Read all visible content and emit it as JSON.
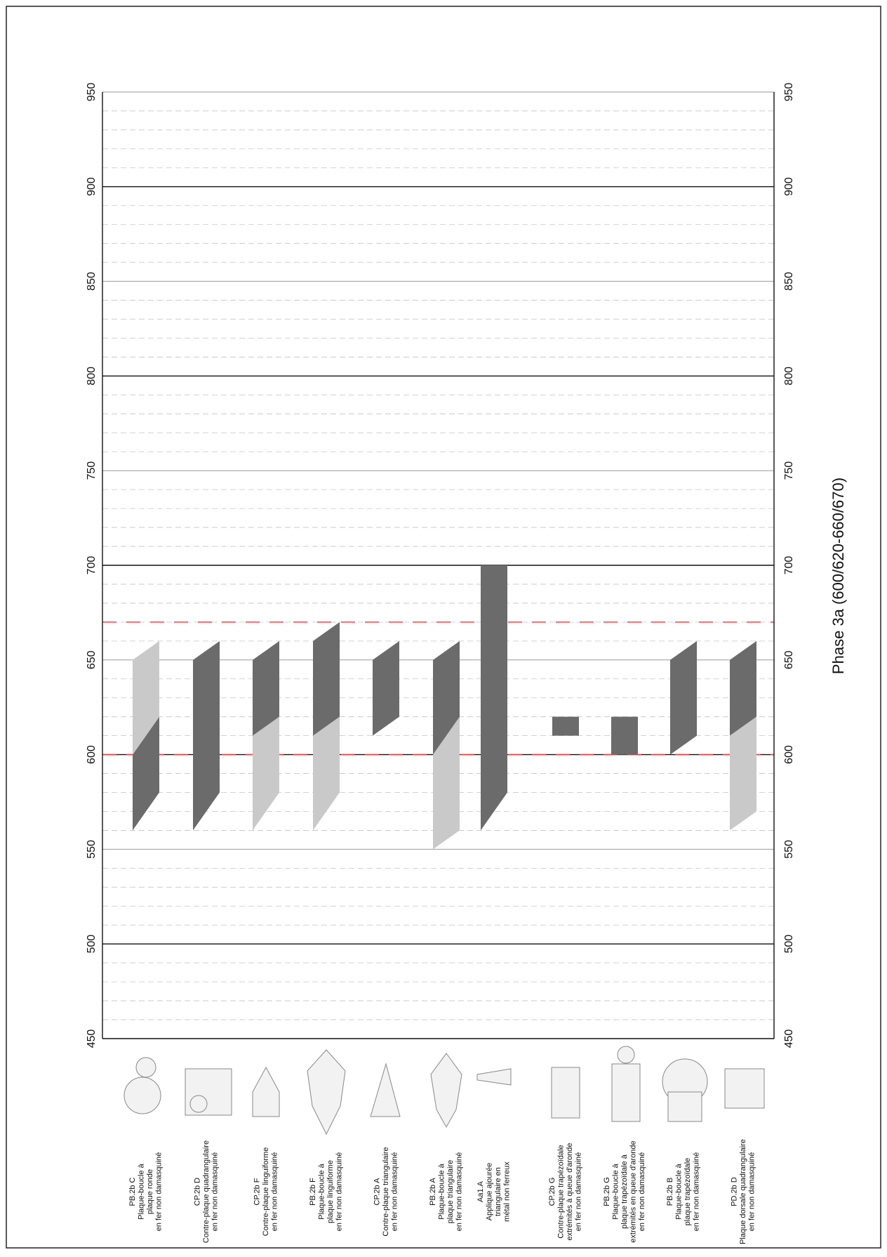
{
  "chart_data": {
    "type": "range",
    "title": "Phase 3a (600/620-660/670)",
    "ylim": [
      450,
      950
    ],
    "yticks": [
      450,
      500,
      550,
      600,
      650,
      700,
      750,
      800,
      850,
      900,
      950
    ],
    "grid": true,
    "reference_lines": [
      600,
      670
    ],
    "reference_color": "#e8474a",
    "colors": {
      "dark": "#6b6b6b",
      "light": "#c9c9c9"
    },
    "categories": [
      [
        "PB.2b C",
        "Plaque-boucle à",
        "plaque ronde",
        "en fer non damasquiné"
      ],
      [
        "CP.2b D",
        "Contre-plaque quadrangulaire",
        "en fer non damasquiné"
      ],
      [
        "CP.2b F",
        "Contre-plaque linguiforme",
        "en fer non damasquiné"
      ],
      [
        "PB.2b F",
        "Plaque-boucle à",
        "plaque linguiforme",
        "en fer non damasquiné"
      ],
      [
        "CP.2b A",
        "Contre-plaque triangulaire",
        "en fer non damasquiné"
      ],
      [
        "PB.2b A",
        "Plaque-boucle à",
        "plaque triangulaire",
        "en fer non damasquiné"
      ],
      [
        "Aa1.A",
        "Applique ajourée",
        "triangulaire en",
        "métal non ferreux"
      ],
      [
        "CP.2b G",
        "Contre-plaque trapézoïdale",
        "extrémités à queue d'aronde",
        "en fer non damasquiné"
      ],
      [
        "PB.2b G",
        "Plaque-boucle à",
        "plaque trapézoïdale à",
        "extrémités en queue d'aronde",
        "en fer non damasquiné"
      ],
      [
        "PB.2b B",
        "Plaque-boucle à",
        "plaque trapézoïdale",
        "en fer non damasquiné"
      ],
      [
        "PD.2b D",
        "Plaque dorsale quadrangulaire",
        "en fer non damasquiné"
      ]
    ],
    "items": [
      [
        {
          "tone": "dark",
          "start": [
            560,
            580
          ],
          "end": [
            600,
            620
          ]
        },
        {
          "tone": "light",
          "start": [
            600,
            620
          ],
          "end": [
            650,
            660
          ]
        }
      ],
      [
        {
          "tone": "dark",
          "start": [
            560,
            580
          ],
          "end": [
            650,
            660
          ]
        }
      ],
      [
        {
          "tone": "light",
          "start": [
            560,
            580
          ],
          "end": [
            610,
            620
          ]
        },
        {
          "tone": "dark",
          "start": [
            610,
            620
          ],
          "end": [
            650,
            660
          ]
        }
      ],
      [
        {
          "tone": "light",
          "start": [
            560,
            580
          ],
          "end": [
            610,
            620
          ]
        },
        {
          "tone": "dark",
          "start": [
            610,
            620
          ],
          "end": [
            660,
            670
          ]
        }
      ],
      [
        {
          "tone": "dark",
          "start": [
            610,
            620
          ],
          "end": [
            650,
            660
          ]
        }
      ],
      [
        {
          "tone": "light",
          "start": [
            550,
            560
          ],
          "end": [
            600,
            620
          ]
        },
        {
          "tone": "dark",
          "start": [
            600,
            620
          ],
          "end": [
            650,
            660
          ]
        }
      ],
      [
        {
          "tone": "dark",
          "start": [
            560,
            580
          ],
          "end": [
            700,
            700
          ]
        }
      ],
      [
        {
          "tone": "dark",
          "start": [
            610,
            610
          ],
          "end": [
            620,
            620
          ]
        }
      ],
      [
        {
          "tone": "dark",
          "start": [
            600,
            600
          ],
          "end": [
            620,
            620
          ]
        }
      ],
      [
        {
          "tone": "dark",
          "start": [
            600,
            610
          ],
          "end": [
            650,
            660
          ]
        }
      ],
      [
        {
          "tone": "light",
          "start": [
            560,
            570
          ],
          "end": [
            610,
            620
          ]
        },
        {
          "tone": "dark",
          "start": [
            610,
            620
          ],
          "end": [
            650,
            660
          ]
        }
      ]
    ]
  }
}
